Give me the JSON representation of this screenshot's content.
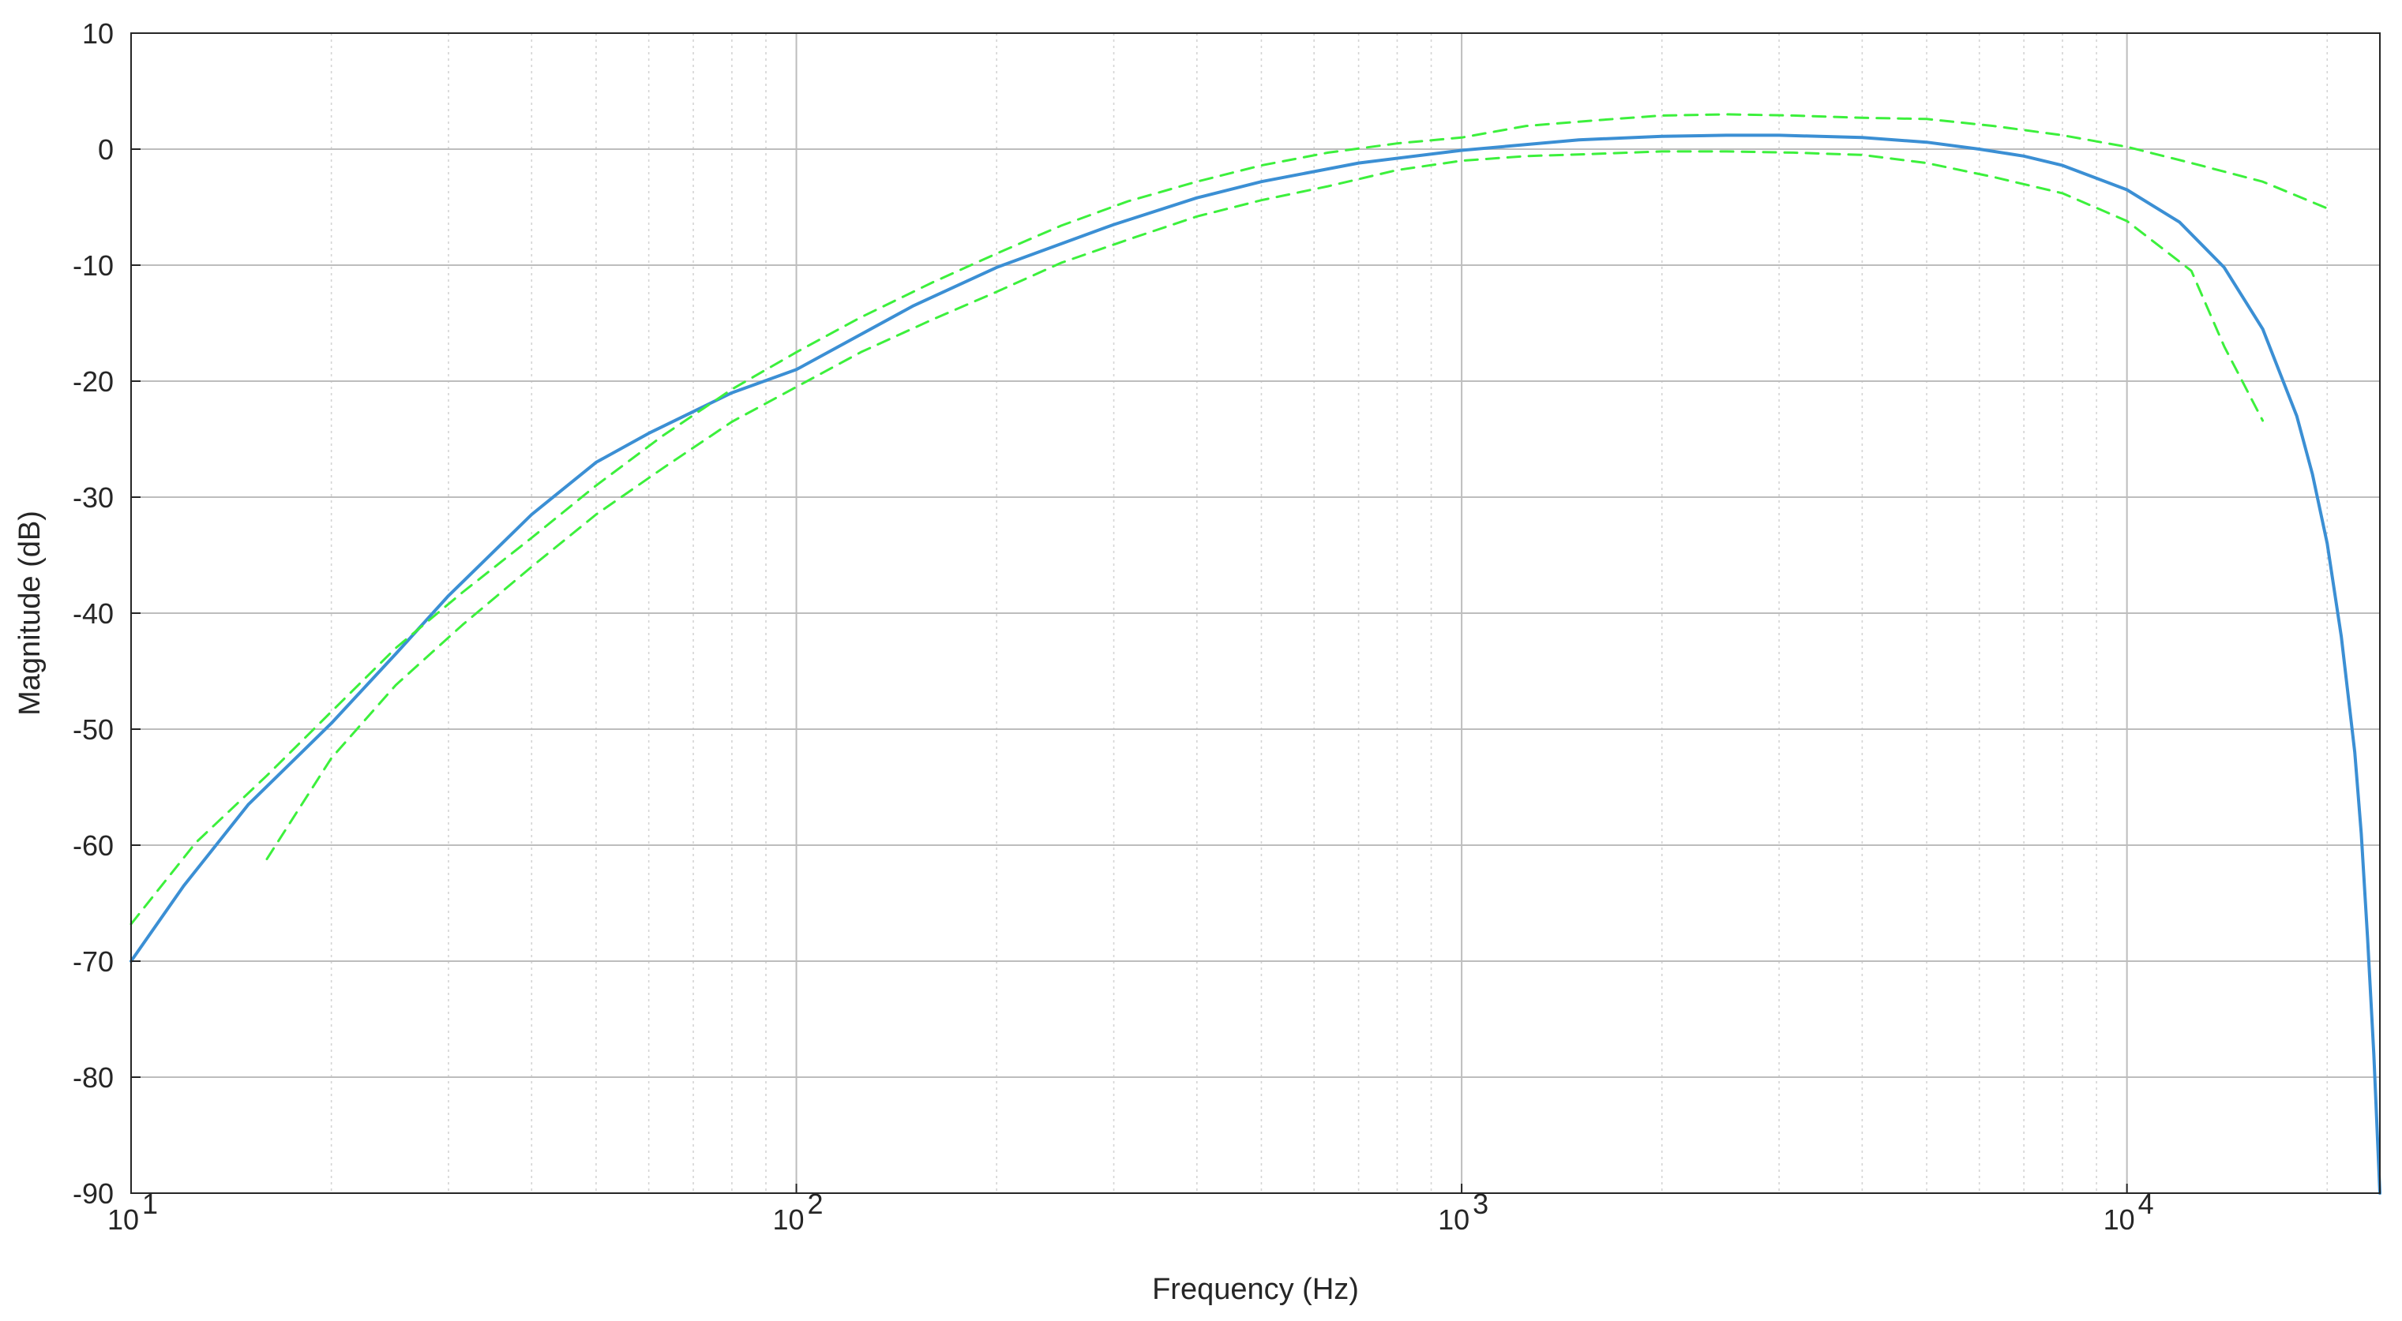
{
  "chart_data": {
    "type": "line",
    "title": "",
    "xlabel": "Frequency (Hz)",
    "ylabel": "Magnitude (dB)",
    "xscale": "log",
    "xlim": [
      10,
      24000
    ],
    "ylim": [
      -90,
      10
    ],
    "grid": "on (major solid, minor dotted on x)",
    "legend": "none",
    "xticks": [
      {
        "value": 10,
        "base": "10",
        "exp": "1"
      },
      {
        "value": 100,
        "base": "10",
        "exp": "2"
      },
      {
        "value": 1000,
        "base": "10",
        "exp": "3"
      },
      {
        "value": 10000,
        "base": "10",
        "exp": "4"
      }
    ],
    "yticks": [
      10,
      0,
      -10,
      -20,
      -30,
      -40,
      -50,
      -60,
      -70,
      -80,
      -90
    ],
    "series": [
      {
        "role": "response",
        "color": "#3b8fd4",
        "style": "solid",
        "x": [
          10,
          12,
          15,
          20,
          25,
          30,
          40,
          50,
          60,
          80,
          100,
          150,
          200,
          300,
          400,
          500,
          700,
          1000,
          1500,
          2000,
          2500,
          3000,
          4000,
          5000,
          6000,
          7000,
          8000,
          10000,
          12000,
          14000,
          16000,
          18000,
          19000,
          20000,
          21000,
          22000,
          22500,
          23000,
          23500,
          24000
        ],
        "values": [
          -70,
          -63.5,
          -56.5,
          -49.5,
          -43.5,
          -38.5,
          -31.5,
          -27,
          -24.5,
          -21,
          -19,
          -13.5,
          -10.2,
          -6.5,
          -4.2,
          -2.8,
          -1.2,
          -0.1,
          0.8,
          1.1,
          1.2,
          1.2,
          1.0,
          0.6,
          0,
          -0.6,
          -1.4,
          -3.5,
          -6.3,
          -10.2,
          -15.5,
          -23,
          -28,
          -34,
          -42,
          -52,
          -59,
          -68,
          -78,
          -90
        ]
      },
      {
        "role": "upper limit",
        "color": "#3cf03c",
        "style": "dashed",
        "x": [
          10,
          12.5,
          16,
          20,
          25,
          31.5,
          40,
          50,
          63,
          80,
          100,
          125,
          160,
          200,
          250,
          315,
          400,
          500,
          630,
          800,
          1000,
          1250,
          1600,
          2000,
          2500,
          3150,
          4000,
          5000,
          6300,
          8000,
          10000,
          12500,
          16000,
          20000
        ],
        "values": [
          -66.8,
          -59.8,
          -54,
          -48.5,
          -43,
          -38.2,
          -33.5,
          -29,
          -24.7,
          -20.7,
          -17.5,
          -14.5,
          -11.5,
          -9,
          -6.6,
          -4.5,
          -2.8,
          -1.4,
          -0.3,
          0.5,
          1.0,
          2.0,
          2.5,
          2.9,
          3.0,
          2.9,
          2.7,
          2.6,
          2.0,
          1.2,
          0.2,
          -1.2,
          -2.8,
          -5.1
        ]
      },
      {
        "role": "lower limit",
        "color": "#3cf03c",
        "style": "dashed",
        "x": [
          16,
          20,
          25,
          31.5,
          40,
          50,
          63,
          80,
          100,
          125,
          160,
          200,
          250,
          315,
          400,
          500,
          630,
          800,
          1000,
          1250,
          1600,
          2000,
          2500,
          3150,
          4000,
          5000,
          6300,
          8000,
          10000,
          12500,
          14000,
          16000
        ],
        "values": [
          -61.2,
          -52.5,
          -46.2,
          -41,
          -36,
          -31.5,
          -27.5,
          -23.5,
          -20.5,
          -17.5,
          -14.7,
          -12.3,
          -9.8,
          -7.8,
          -5.8,
          -4.4,
          -3.2,
          -1.8,
          -1.0,
          -0.6,
          -0.4,
          -0.2,
          -0.2,
          -0.3,
          -0.5,
          -1.2,
          -2.4,
          -3.8,
          -6.2,
          -10.5,
          -17,
          -23.4
        ]
      }
    ]
  }
}
